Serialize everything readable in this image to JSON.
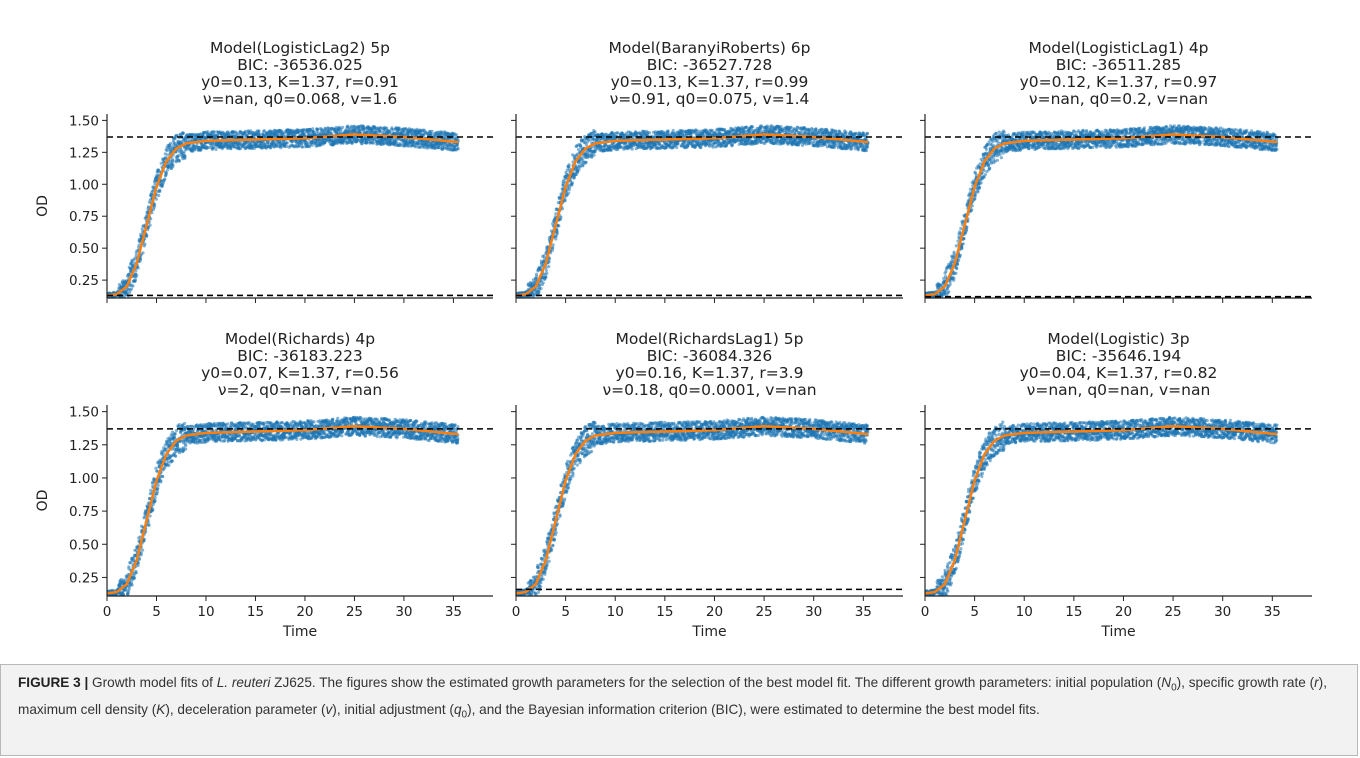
{
  "figure": {
    "caption_label": "FIGURE 3 |",
    "caption_parts": [
      {
        "t": " Growth model fits of ",
        "s": "n"
      },
      {
        "t": "L. reuteri",
        "s": "i"
      },
      {
        "t": " ZJ625. The figures show the estimated growth parameters for the selection of the best model fit. The different growth parameters: initial population (",
        "s": "n"
      },
      {
        "t": "N",
        "s": "i"
      },
      {
        "t": "0",
        "s": "sub"
      },
      {
        "t": "), specific growth rate (",
        "s": "n"
      },
      {
        "t": "r",
        "s": "i"
      },
      {
        "t": "), maximum cell density (",
        "s": "n"
      },
      {
        "t": "K",
        "s": "i"
      },
      {
        "t": "), deceleration parameter (",
        "s": "n"
      },
      {
        "t": "v",
        "s": "i"
      },
      {
        "t": "), initial adjustment (",
        "s": "n"
      },
      {
        "t": "q",
        "s": "i"
      },
      {
        "t": "0",
        "s": "sub"
      },
      {
        "t": "), and the Bayesian information criterion (BIC), were estimated to determine the best model fits.",
        "s": "n"
      }
    ]
  },
  "colors": {
    "data": "#1f77b4",
    "fit": "#ff7f0e",
    "reference_line": "#000000",
    "axis": "#222222"
  },
  "chart_data": [
    {
      "type": "scatter",
      "title_lines": [
        "Model(LogisticLag2) 5p",
        "BIC: -36536.025",
        "y0=0.13, K=1.37, r=0.91",
        "ν=nan, q0=0.068, v=1.6"
      ],
      "params": {
        "y0": 0.13,
        "K": 1.37,
        "r": 0.91,
        "nu": "nan",
        "q0": 0.068,
        "v": 1.6
      },
      "bic": -36536.025,
      "xlabel": "",
      "ylabel": "OD",
      "xlim": [
        0,
        39
      ],
      "ylim": [
        0.11,
        1.55
      ],
      "x_ticks": [
        0,
        5,
        10,
        15,
        20,
        25,
        30,
        35
      ],
      "y_ticks": [
        0.25,
        0.5,
        0.75,
        1.0,
        1.25,
        1.5
      ],
      "y_ticklabels": [
        "0.25",
        "0.50",
        "0.75",
        "1.00",
        "1.25",
        "1.50"
      ],
      "show_x_ticklabels": false,
      "show_y_ticklabels": true,
      "hlines": [
        1.37,
        0.13
      ],
      "series": [
        {
          "x": [
            0,
            1,
            2,
            3,
            4,
            5,
            6,
            7,
            8,
            10,
            15,
            20,
            25,
            30,
            35.5
          ],
          "y": [
            0.13,
            0.14,
            0.2,
            0.38,
            0.68,
            0.98,
            1.18,
            1.28,
            1.32,
            1.34,
            1.35,
            1.36,
            1.39,
            1.37,
            1.33
          ],
          "spread": 0.07
        }
      ]
    },
    {
      "type": "scatter",
      "title_lines": [
        "Model(BaranyiRoberts) 6p",
        "BIC: -36527.728",
        "y0=0.13, K=1.37, r=0.99",
        "ν=0.91, q0=0.075, v=1.4"
      ],
      "params": {
        "y0": 0.13,
        "K": 1.37,
        "r": 0.99,
        "nu": 0.91,
        "q0": 0.075,
        "v": 1.4
      },
      "bic": -36527.728,
      "xlabel": "",
      "ylabel": "",
      "xlim": [
        0,
        39
      ],
      "ylim": [
        0.11,
        1.55
      ],
      "x_ticks": [
        0,
        5,
        10,
        15,
        20,
        25,
        30,
        35
      ],
      "y_ticks": [
        0.25,
        0.5,
        0.75,
        1.0,
        1.25,
        1.5
      ],
      "show_x_ticklabels": false,
      "show_y_ticklabels": false,
      "hlines": [
        1.37,
        0.13
      ],
      "series": [
        {
          "x": [
            0,
            1,
            2,
            3,
            4,
            5,
            6,
            7,
            8,
            10,
            15,
            20,
            25,
            30,
            35.5
          ],
          "y": [
            0.13,
            0.14,
            0.2,
            0.38,
            0.68,
            0.98,
            1.18,
            1.28,
            1.32,
            1.34,
            1.35,
            1.36,
            1.39,
            1.37,
            1.33
          ],
          "spread": 0.07
        }
      ]
    },
    {
      "type": "scatter",
      "title_lines": [
        "Model(LogisticLag1) 4p",
        "BIC: -36511.285",
        "y0=0.12, K=1.37, r=0.97",
        "ν=nan, q0=0.2, v=nan"
      ],
      "params": {
        "y0": 0.12,
        "K": 1.37,
        "r": 0.97,
        "nu": "nan",
        "q0": 0.2,
        "v": "nan"
      },
      "bic": -36511.285,
      "xlabel": "",
      "ylabel": "",
      "xlim": [
        0,
        39
      ],
      "ylim": [
        0.11,
        1.55
      ],
      "x_ticks": [
        0,
        5,
        10,
        15,
        20,
        25,
        30,
        35
      ],
      "y_ticks": [
        0.25,
        0.5,
        0.75,
        1.0,
        1.25,
        1.5
      ],
      "show_x_ticklabels": false,
      "show_y_ticklabels": false,
      "hlines": [
        1.37,
        0.12
      ],
      "series": [
        {
          "x": [
            0,
            1,
            2,
            3,
            4,
            5,
            6,
            7,
            8,
            10,
            15,
            20,
            25,
            30,
            35.5
          ],
          "y": [
            0.13,
            0.14,
            0.2,
            0.38,
            0.68,
            0.98,
            1.18,
            1.28,
            1.32,
            1.34,
            1.35,
            1.36,
            1.39,
            1.37,
            1.33
          ],
          "spread": 0.07
        }
      ]
    },
    {
      "type": "scatter",
      "title_lines": [
        "Model(Richards) 4p",
        "BIC: -36183.223",
        "y0=0.07, K=1.37, r=0.56",
        "ν=2, q0=nan, v=nan"
      ],
      "params": {
        "y0": 0.07,
        "K": 1.37,
        "r": 0.56,
        "nu": 2,
        "q0": "nan",
        "v": "nan"
      },
      "bic": -36183.223,
      "xlabel": "Time",
      "ylabel": "OD",
      "xlim": [
        0,
        39
      ],
      "ylim": [
        0.11,
        1.55
      ],
      "x_ticks": [
        0,
        5,
        10,
        15,
        20,
        25,
        30,
        35
      ],
      "y_ticks": [
        0.25,
        0.5,
        0.75,
        1.0,
        1.25,
        1.5
      ],
      "y_ticklabels": [
        "0.25",
        "0.50",
        "0.75",
        "1.00",
        "1.25",
        "1.50"
      ],
      "show_x_ticklabels": true,
      "show_y_ticklabels": true,
      "hlines": [
        1.37
      ],
      "series": [
        {
          "x": [
            0,
            1,
            2,
            3,
            4,
            5,
            6,
            7,
            8,
            10,
            15,
            20,
            25,
            30,
            35.5
          ],
          "y": [
            0.13,
            0.14,
            0.2,
            0.38,
            0.68,
            0.98,
            1.18,
            1.28,
            1.32,
            1.34,
            1.35,
            1.36,
            1.39,
            1.37,
            1.33
          ],
          "spread": 0.07
        }
      ]
    },
    {
      "type": "scatter",
      "title_lines": [
        "Model(RichardsLag1) 5p",
        "BIC: -36084.326",
        "y0=0.16, K=1.37, r=3.9",
        "ν=0.18, q0=0.0001, v=nan"
      ],
      "params": {
        "y0": 0.16,
        "K": 1.37,
        "r": 3.9,
        "nu": 0.18,
        "q0": 0.0001,
        "v": "nan"
      },
      "bic": -36084.326,
      "xlabel": "Time",
      "ylabel": "",
      "xlim": [
        0,
        39
      ],
      "ylim": [
        0.11,
        1.55
      ],
      "x_ticks": [
        0,
        5,
        10,
        15,
        20,
        25,
        30,
        35
      ],
      "y_ticks": [
        0.25,
        0.5,
        0.75,
        1.0,
        1.25,
        1.5
      ],
      "show_x_ticklabels": true,
      "show_y_ticklabels": false,
      "hlines": [
        1.37,
        0.16
      ],
      "series": [
        {
          "x": [
            0,
            1,
            2,
            3,
            4,
            5,
            6,
            7,
            8,
            10,
            15,
            20,
            25,
            30,
            35.5
          ],
          "y": [
            0.13,
            0.14,
            0.2,
            0.38,
            0.68,
            0.98,
            1.18,
            1.28,
            1.32,
            1.34,
            1.35,
            1.36,
            1.39,
            1.37,
            1.33
          ],
          "spread": 0.07
        }
      ]
    },
    {
      "type": "scatter",
      "title_lines": [
        "Model(Logistic) 3p",
        "BIC: -35646.194",
        "y0=0.04, K=1.37, r=0.82",
        "ν=nan, q0=nan, v=nan"
      ],
      "params": {
        "y0": 0.04,
        "K": 1.37,
        "r": 0.82,
        "nu": "nan",
        "q0": "nan",
        "v": "nan"
      },
      "bic": -35646.194,
      "xlabel": "Time",
      "ylabel": "",
      "xlim": [
        0,
        39
      ],
      "ylim": [
        0.11,
        1.55
      ],
      "x_ticks": [
        0,
        5,
        10,
        15,
        20,
        25,
        30,
        35
      ],
      "y_ticks": [
        0.25,
        0.5,
        0.75,
        1.0,
        1.25,
        1.5
      ],
      "show_x_ticklabels": true,
      "show_y_ticklabels": false,
      "hlines": [
        1.37
      ],
      "series": [
        {
          "x": [
            0,
            1,
            2,
            3,
            4,
            5,
            6,
            7,
            8,
            10,
            15,
            20,
            25,
            30,
            35.5
          ],
          "y": [
            0.13,
            0.14,
            0.2,
            0.38,
            0.68,
            0.98,
            1.18,
            1.28,
            1.32,
            1.34,
            1.35,
            1.36,
            1.39,
            1.37,
            1.33
          ],
          "spread": 0.07
        }
      ]
    }
  ]
}
